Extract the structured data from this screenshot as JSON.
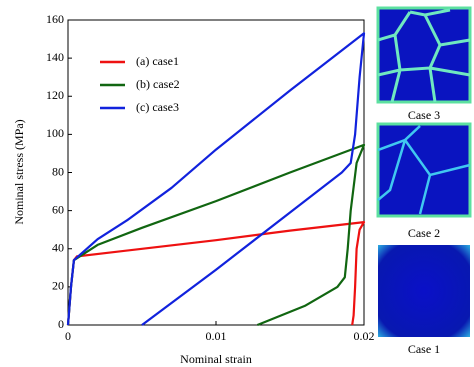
{
  "chart_data": {
    "type": "line",
    "xlabel": "Nominal strain",
    "ylabel": "Nominal stress (MPa)",
    "xlim": [
      0,
      0.02
    ],
    "ylim": [
      0,
      160
    ],
    "xticks": [
      0,
      0.01,
      0.02
    ],
    "yticks": [
      0,
      20,
      40,
      60,
      80,
      100,
      120,
      140,
      160
    ],
    "legend": "upper left",
    "series": [
      {
        "name": "(a) case1",
        "color": "#ee1111",
        "x": [
          0,
          0.0002,
          0.0004,
          0.0006,
          0.005,
          0.01,
          0.015,
          0.02,
          0.0197,
          0.0195,
          0.0194,
          0.0193,
          0.0192
        ],
        "values": [
          0,
          20,
          34,
          36,
          40,
          44.5,
          49.5,
          54,
          50,
          40,
          20,
          5,
          0
        ]
      },
      {
        "name": "(b) case2",
        "color": "#116611",
        "x": [
          0,
          0.0002,
          0.0004,
          0.002,
          0.005,
          0.01,
          0.015,
          0.02,
          0.0195,
          0.0191,
          0.0189,
          0.0187,
          0.0182,
          0.016,
          0.0128
        ],
        "values": [
          0,
          20,
          34,
          42,
          51,
          65,
          80,
          94.5,
          85,
          60,
          40,
          25,
          20,
          10,
          0
        ]
      },
      {
        "name": "(c) case3",
        "color": "#1122dd",
        "x": [
          0,
          0.0002,
          0.0004,
          0.002,
          0.004,
          0.007,
          0.01,
          0.015,
          0.02,
          0.0197,
          0.0194,
          0.0191,
          0.0185,
          0.015,
          0.01,
          0.005
        ],
        "values": [
          0,
          20,
          34,
          45,
          55,
          72,
          92,
          123,
          153,
          130,
          100,
          85,
          80,
          59,
          29,
          0
        ]
      }
    ]
  },
  "panels": [
    "Case 3",
    "Case 2",
    "Case 1"
  ]
}
